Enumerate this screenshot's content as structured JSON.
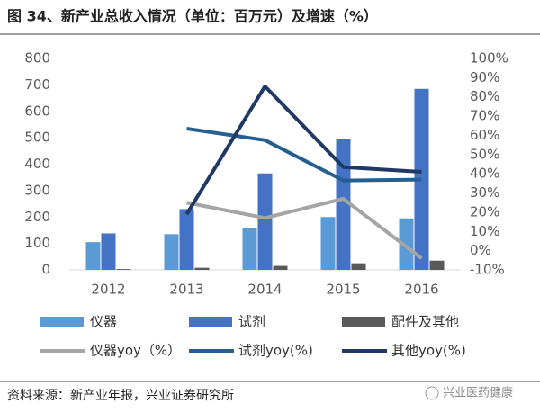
{
  "chart_data": {
    "type": "bar",
    "title": "图 34、新产业总收入情况（单位：百万元）及增速（%）",
    "categories": [
      "2012",
      "2013",
      "2014",
      "2015",
      "2016"
    ],
    "series": [
      {
        "name": "仪器",
        "color": "#5b9bd5",
        "type": "bar",
        "values": [
          105,
          135,
          160,
          200,
          195
        ]
      },
      {
        "name": "试剂",
        "color": "#4472c4",
        "type": "bar",
        "values": [
          138,
          230,
          365,
          497,
          685
        ]
      },
      {
        "name": "配件及其他",
        "color": "#595959",
        "type": "bar",
        "values": [
          3,
          8,
          15,
          25,
          35
        ]
      },
      {
        "name": "仪器yoy（%）",
        "color": "#a5a5a5",
        "type": "line",
        "axis": "y2",
        "values": [
          null,
          25,
          17,
          27,
          -4
        ]
      },
      {
        "name": "试剂yoy(%)",
        "color": "#255e91",
        "type": "line",
        "axis": "y2",
        "values": [
          null,
          63.5,
          57.5,
          36.5,
          37
        ]
      },
      {
        "name": "其他yoy(%)",
        "color": "#203864",
        "type": "line",
        "axis": "y2",
        "values": [
          null,
          19,
          85.5,
          43.5,
          41
        ]
      }
    ],
    "ylim": [
      0,
      800
    ],
    "yticks": [
      0,
      100,
      200,
      300,
      400,
      500,
      600,
      700,
      800
    ],
    "y2lim": [
      -10,
      100
    ],
    "y2ticks": [
      {
        "value": -10,
        "label": "-10%"
      },
      {
        "value": 0,
        "label": "0%"
      },
      {
        "value": 10,
        "label": "10%"
      },
      {
        "value": 20,
        "label": "20%"
      },
      {
        "value": 30,
        "label": "30%"
      },
      {
        "value": 40,
        "label": "40%"
      },
      {
        "value": 50,
        "label": "50%"
      },
      {
        "value": 60,
        "label": "60%"
      },
      {
        "value": 70,
        "label": "70%"
      },
      {
        "value": 80,
        "label": "80%"
      },
      {
        "value": 90,
        "label": "90%"
      },
      {
        "value": 100,
        "label": "100%"
      }
    ]
  },
  "footer": {
    "source": "资料来源：新产业年报，兴业证券研究所",
    "watermark": "兴业医药健康"
  }
}
